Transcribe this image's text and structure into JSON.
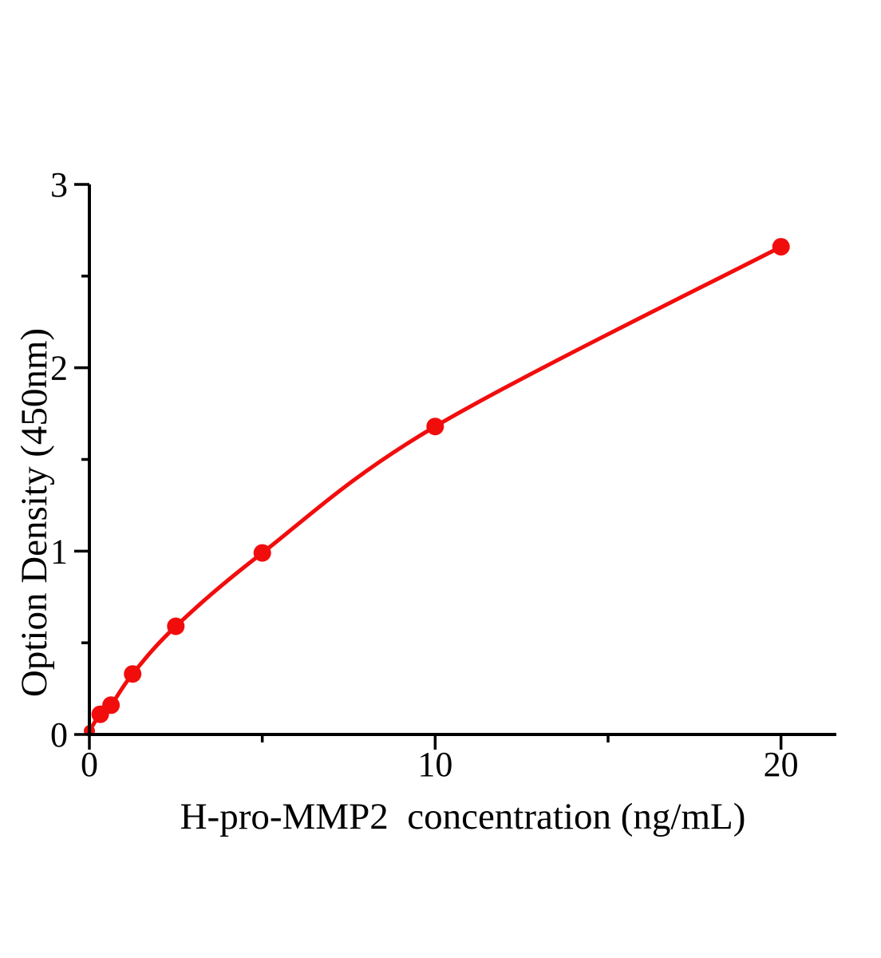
{
  "chart_data": {
    "type": "line",
    "title": "",
    "xlabel": "H-pro-MMP2  concentration (ng/mL)",
    "ylabel": "Option Density (450nm)",
    "x": [
      0,
      0.313,
      0.625,
      1.25,
      2.5,
      5,
      10,
      20
    ],
    "y": [
      0.02,
      0.11,
      0.16,
      0.33,
      0.59,
      0.99,
      1.68,
      2.66
    ],
    "xlim": [
      0,
      21.6
    ],
    "ylim": [
      0,
      3
    ],
    "x_ticks_major": [
      0,
      10,
      20
    ],
    "x_ticks_minor": [
      5,
      15
    ],
    "y_ticks_major": [
      0,
      1,
      2,
      3
    ],
    "y_ticks_minor": [
      0.5,
      1.5,
      2.5
    ],
    "grid": false,
    "legend": "none",
    "line_color": "#f20d0d",
    "marker_color": "#f20d0d",
    "axis_color": "#000000",
    "background": "#ffffff",
    "line_width": 5,
    "marker_radius": 11,
    "origin_marker_radius": 7
  }
}
